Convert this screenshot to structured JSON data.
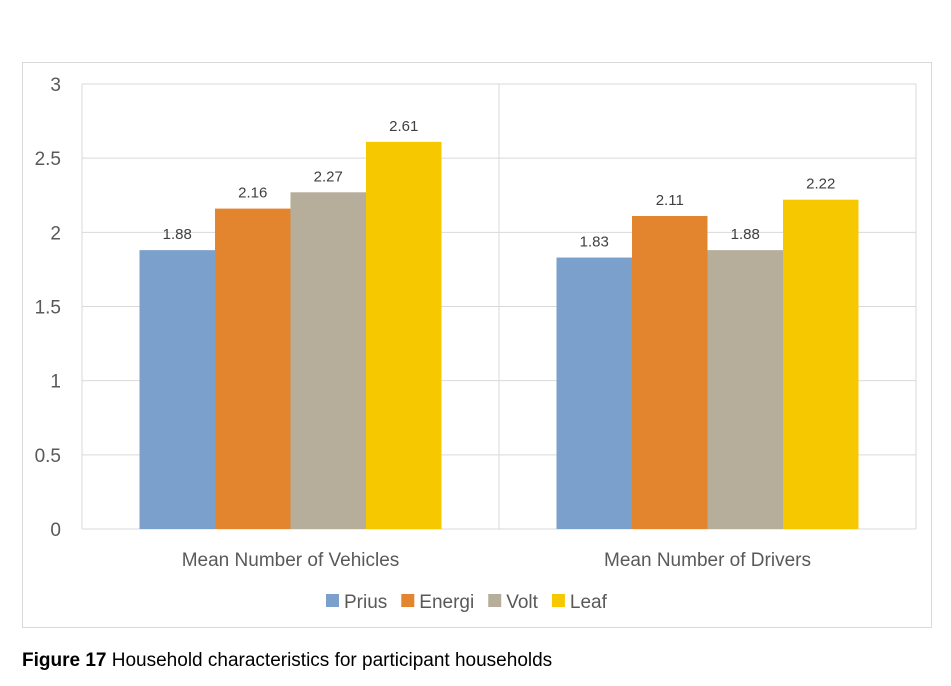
{
  "chart_data": {
    "type": "bar",
    "title": "",
    "xlabel": "",
    "ylabel": "",
    "categories": [
      "Mean Number of Vehicles",
      "Mean Number of Drivers"
    ],
    "series": [
      {
        "name": "Prius",
        "color": "#7aa0cb",
        "values": [
          1.88,
          1.83
        ]
      },
      {
        "name": "Energi",
        "color": "#e3842f",
        "values": [
          2.16,
          2.11
        ]
      },
      {
        "name": "Volt",
        "color": "#b6ae9a",
        "values": [
          2.27,
          1.88
        ]
      },
      {
        "name": "Leaf",
        "color": "#f5c800",
        "values": [
          2.61,
          2.22
        ]
      }
    ],
    "ylim": [
      0,
      3
    ],
    "yticks": [
      "0",
      "0.5",
      "1",
      "1.5",
      "2",
      "2.5",
      "3"
    ],
    "ytick_values": [
      0,
      0.5,
      1,
      1.5,
      2,
      2.5,
      3
    ],
    "data_labels": [
      [
        "1.88",
        "1.83"
      ],
      [
        "2.16",
        "2.11"
      ],
      [
        "2.27",
        "1.88"
      ],
      [
        "2.61",
        "2.22"
      ]
    ],
    "grid": true,
    "legend_position": "bottom"
  },
  "caption": {
    "number": "Figure 17",
    "text": " Household characteristics for participant households"
  }
}
